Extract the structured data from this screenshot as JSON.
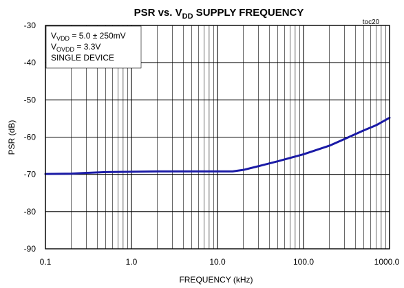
{
  "chart_data": {
    "type": "line",
    "title": {
      "prefix": "PSR vs. V",
      "sub": "DD",
      "suffix": " SUPPLY FREQUENCY"
    },
    "figure_code": "toc20",
    "xlabel": "FREQUENCY (kHz)",
    "ylabel": "PSR (dB)",
    "x_scale": "log",
    "xlim": [
      0.1,
      1000
    ],
    "ylim": [
      -90,
      -30
    ],
    "x_ticks": [
      {
        "value": 0.1,
        "label": "0.1"
      },
      {
        "value": 1,
        "label": "1.0"
      },
      {
        "value": 10,
        "label": "10.0"
      },
      {
        "value": 100,
        "label": "100.0"
      },
      {
        "value": 1000,
        "label": "1000.0"
      }
    ],
    "y_ticks": [
      {
        "value": -30,
        "label": "-30"
      },
      {
        "value": -40,
        "label": "-40"
      },
      {
        "value": -50,
        "label": "-50"
      },
      {
        "value": -60,
        "label": "-60"
      },
      {
        "value": -70,
        "label": "-70"
      },
      {
        "value": -80,
        "label": "-80"
      },
      {
        "value": -90,
        "label": "-90"
      }
    ],
    "grid": true,
    "line_color": "#1a1aa6",
    "annotations": [
      {
        "pre": "V",
        "sub": "VDD",
        "post": " = 5.0 ± 250mV"
      },
      {
        "pre": "V",
        "sub": "OVDD",
        "post": " = 3.3V"
      },
      {
        "pre": "SINGLE DEVICE",
        "sub": "",
        "post": ""
      }
    ],
    "series": [
      {
        "x": [
          0.1,
          0.2,
          0.3,
          0.5,
          1,
          2,
          5,
          10,
          15,
          20,
          30,
          50,
          100,
          200,
          300,
          500,
          700,
          1000
        ],
        "y": [
          -69.9,
          -69.8,
          -69.6,
          -69.4,
          -69.3,
          -69.2,
          -69.2,
          -69.2,
          -69.2,
          -68.8,
          -67.8,
          -66.5,
          -64.6,
          -62.3,
          -60.5,
          -58.2,
          -56.8,
          -54.8
        ]
      }
    ]
  }
}
